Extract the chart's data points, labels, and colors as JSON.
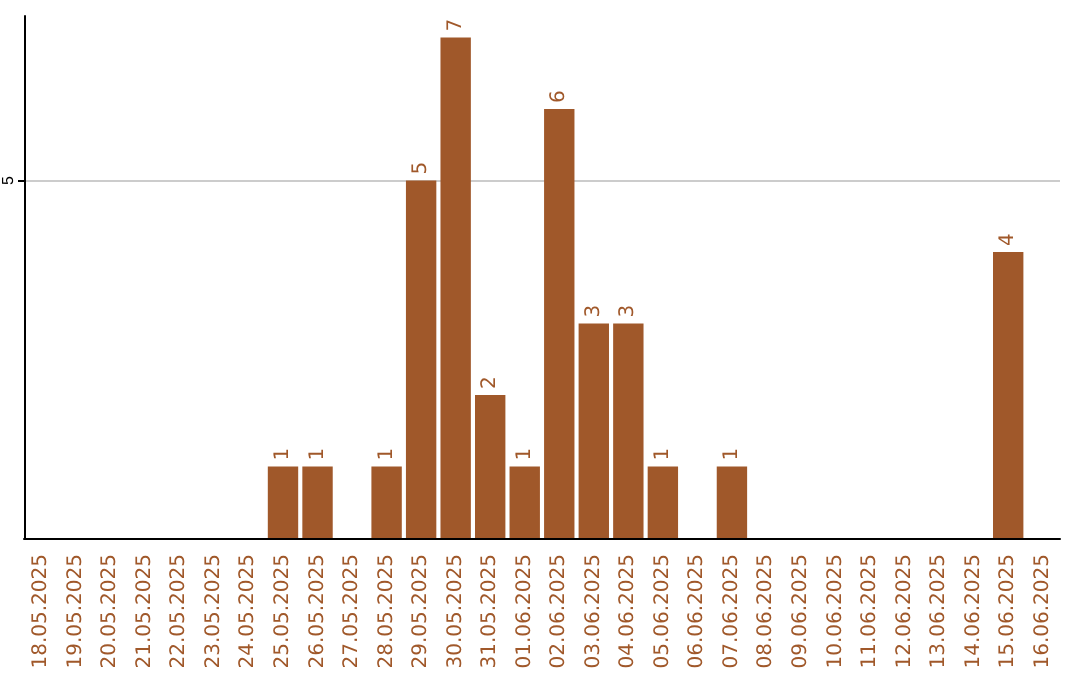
{
  "chart_data": {
    "type": "bar",
    "categories": [
      "18.05.2025",
      "19.05.2025",
      "20.05.2025",
      "21.05.2025",
      "22.05.2025",
      "23.05.2025",
      "24.05.2025",
      "25.05.2025",
      "26.05.2025",
      "27.05.2025",
      "28.05.2025",
      "29.05.2025",
      "30.05.2025",
      "31.05.2025",
      "01.06.2025",
      "02.06.2025",
      "03.06.2025",
      "04.06.2025",
      "05.06.2025",
      "06.06.2025",
      "07.06.2025",
      "08.06.2025",
      "09.06.2025",
      "10.06.2025",
      "11.06.2025",
      "12.06.2025",
      "13.06.2025",
      "14.06.2025",
      "15.06.2025",
      "16.06.2025"
    ],
    "values": [
      0,
      0,
      0,
      0,
      0,
      0,
      0,
      1,
      1,
      0,
      1,
      5,
      7,
      2,
      1,
      6,
      3,
      3,
      1,
      0,
      1,
      0,
      0,
      0,
      0,
      0,
      0,
      0,
      4,
      0
    ],
    "value_labels": [
      null,
      null,
      null,
      null,
      null,
      null,
      null,
      "1",
      "1",
      null,
      "1",
      "5",
      "7",
      "2",
      "1",
      "6",
      "3",
      "3",
      "1",
      null,
      "1",
      null,
      null,
      null,
      null,
      null,
      null,
      null,
      "4",
      null
    ],
    "color": "#a0582a",
    "ylim": [
      0,
      7.3
    ],
    "yticks": [
      5
    ],
    "grid": "y"
  }
}
